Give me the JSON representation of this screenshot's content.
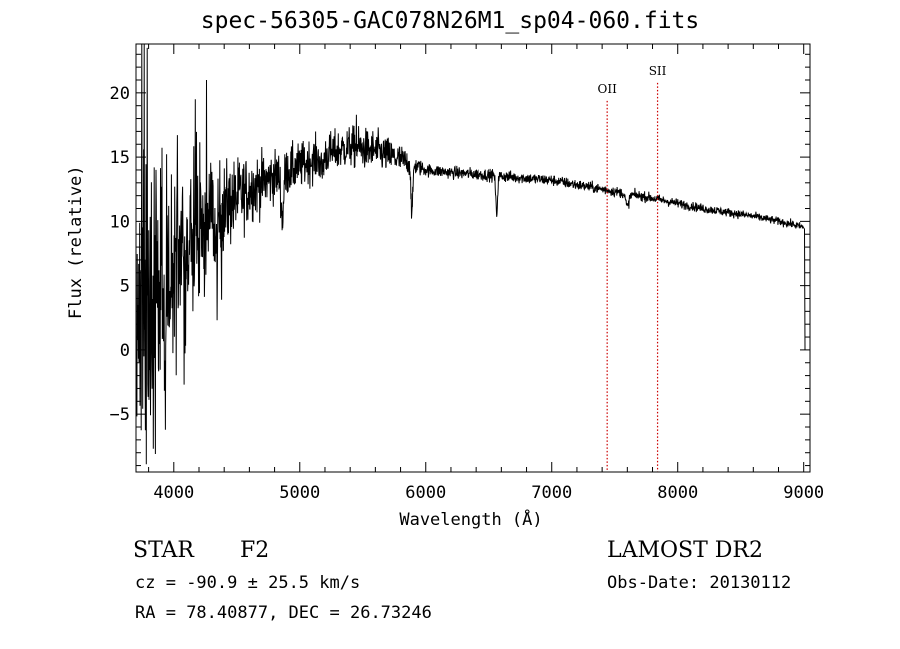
{
  "title": "spec-56305-GAC078N26M1_sp04-060.fits",
  "info": {
    "object_class": "STAR",
    "subclass": "F2",
    "survey": "LAMOST DR2",
    "cz_label": "cz = ",
    "cz_value": "-90.9",
    "cz_pm": " ± ",
    "cz_err": "25.5",
    "cz_unit": " km/s",
    "obs_date_label": "Obs-Date: ",
    "obs_date": "20130112",
    "ra_label": "RA = ",
    "ra": "78.40877",
    "dec_label": ", DEC = ",
    "dec": "26.73246"
  },
  "chart_data": {
    "type": "line",
    "title": "spec-56305-GAC078N26M1_sp04-060.fits",
    "xlabel": "Wavelength (Å)",
    "ylabel": "Flux (relative)",
    "xlim": [
      3700,
      9050
    ],
    "ylim": [
      -9.5,
      23.8
    ],
    "x_ticks": [
      4000,
      5000,
      6000,
      7000,
      8000,
      9000
    ],
    "y_ticks": [
      -5,
      0,
      5,
      10,
      15,
      20
    ],
    "color": "#000000",
    "line_markers": [
      {
        "label": "OII",
        "wavelength": 7440,
        "label_flux": 20.0,
        "color": "#cc0000"
      },
      {
        "label": "SII",
        "wavelength": 7840,
        "label_flux": 21.4,
        "color": "#cc0000"
      }
    ],
    "continuum": {
      "x": [
        3710,
        3800,
        3900,
        4000,
        4100,
        4200,
        4300,
        4400,
        4500,
        4600,
        4800,
        5000,
        5200,
        5400,
        5600,
        5800,
        6000,
        6200,
        6500,
        7000,
        7400,
        7800,
        8200,
        8600,
        8900,
        8970
      ],
      "y": [
        1.0,
        3.0,
        5.0,
        6.5,
        8.0,
        9.5,
        10.5,
        11.0,
        11.8,
        12.5,
        13.5,
        14.3,
        15.2,
        15.8,
        15.5,
        14.8,
        14.0,
        13.8,
        13.6,
        13.2,
        12.5,
        11.8,
        11.0,
        10.4,
        9.8,
        9.6
      ]
    },
    "noise_zones": [
      {
        "x": [
          3700,
          3800,
          3900,
          4000,
          4100,
          4200,
          4300,
          4400,
          4600,
          4800,
          5200,
          5600,
          5800,
          5900,
          6000,
          9000
        ],
        "sigma": [
          6.5,
          6.0,
          5.0,
          4.5,
          4.0,
          3.0,
          2.5,
          1.8,
          1.3,
          1.0,
          0.8,
          0.8,
          0.6,
          0.4,
          0.25,
          0.15
        ]
      }
    ],
    "absorption_features": [
      {
        "wavelength": 3933,
        "depth": 5.0,
        "width": 10
      },
      {
        "wavelength": 3968,
        "depth": 4.5,
        "width": 10
      },
      {
        "wavelength": 4101,
        "depth": 3.5,
        "width": 12
      },
      {
        "wavelength": 4340,
        "depth": 4.0,
        "width": 14
      },
      {
        "wavelength": 4861,
        "depth": 3.5,
        "width": 14
      },
      {
        "wavelength": 5175,
        "depth": 1.2,
        "width": 16
      },
      {
        "wavelength": 5890,
        "depth": 4.0,
        "width": 10
      },
      {
        "wavelength": 6563,
        "depth": 3.0,
        "width": 10
      },
      {
        "wavelength": 7600,
        "depth": 1.0,
        "width": 18
      }
    ],
    "spikes": [
      {
        "wavelength": 3745,
        "flux": 23.8
      },
      {
        "wavelength": 3765,
        "flux": 23.8
      },
      {
        "wavelength": 3790,
        "flux": 23.5
      },
      {
        "wavelength": 4260,
        "flux": 21.0
      },
      {
        "wavelength": 4170,
        "flux": 19.5
      },
      {
        "wavelength": 5450,
        "flux": 18.3
      },
      {
        "wavelength": 4380,
        "flux": 3.9
      }
    ],
    "end_drop": {
      "wavelength": 9010,
      "flux": 0.0
    }
  }
}
